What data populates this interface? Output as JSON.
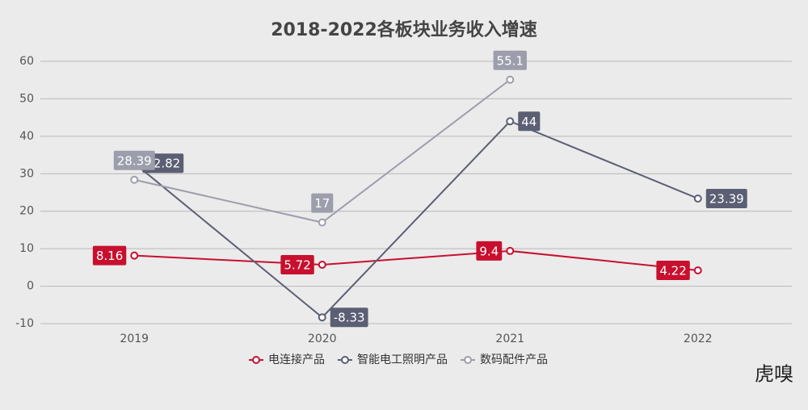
{
  "chart_data": {
    "type": "line",
    "title": "2018-2022各板块业务收入增速",
    "categories": [
      "2019",
      "2020",
      "2021",
      "2022"
    ],
    "series": [
      {
        "name": "电连接产品",
        "color": "#c8102e",
        "values": [
          8.16,
          5.72,
          9.4,
          4.22
        ]
      },
      {
        "name": "智能电工照明产品",
        "color": "#5b5f73",
        "values": [
          32.82,
          -8.33,
          44,
          23.39
        ]
      },
      {
        "name": "数码配件产品",
        "color": "#9c9eac",
        "values": [
          28.39,
          17,
          55.1,
          null
        ]
      }
    ],
    "ylim": [
      -10,
      60
    ],
    "yticks": [
      -10,
      0,
      10,
      20,
      30,
      40,
      50,
      60
    ],
    "grid": true,
    "legend": "bottom",
    "watermark": "虎嗅"
  }
}
